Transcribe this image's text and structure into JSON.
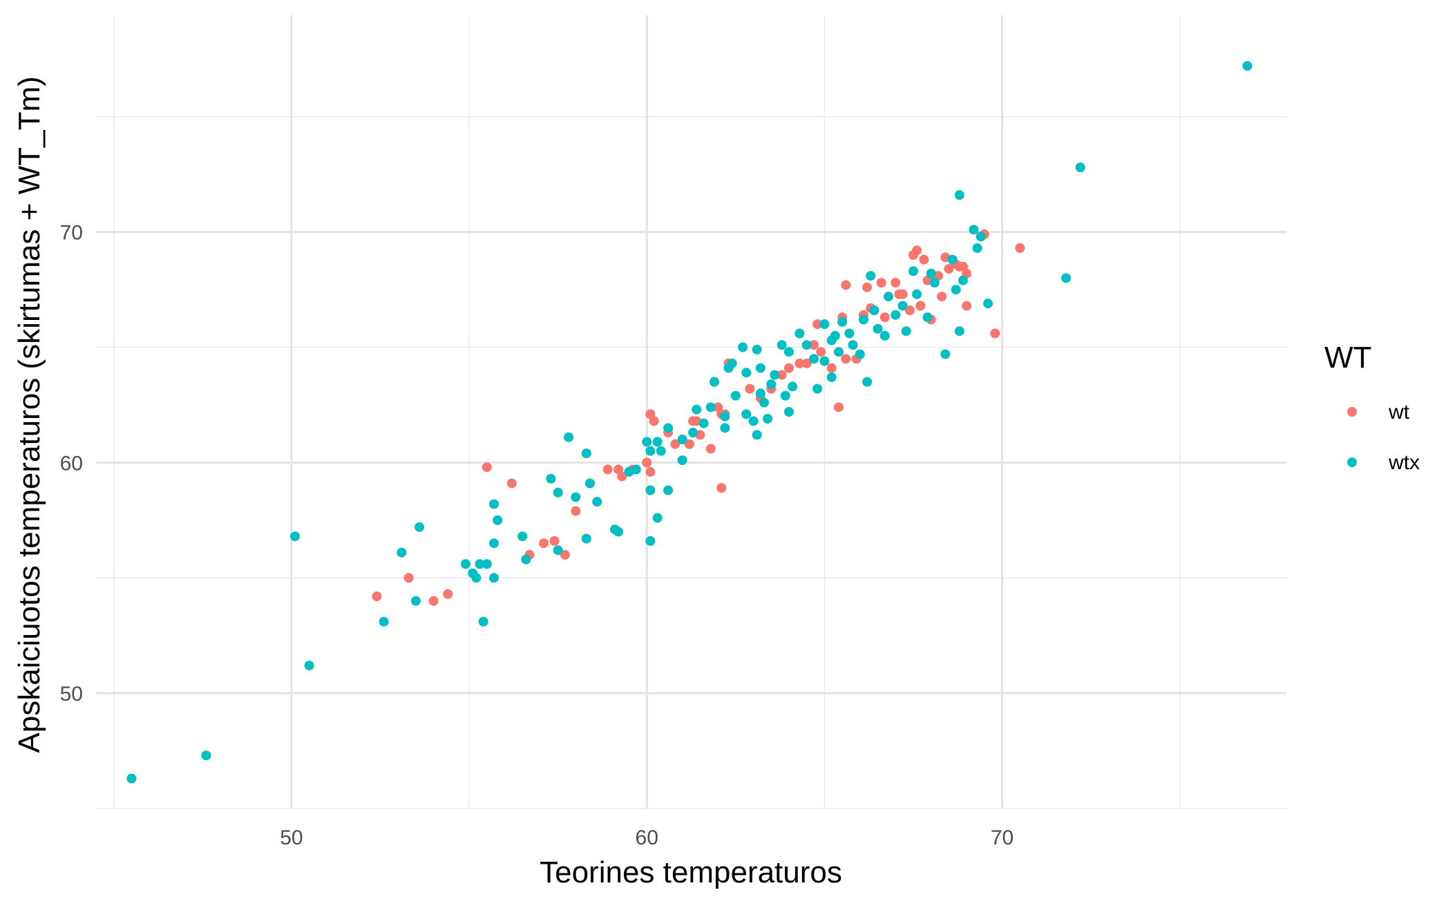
{
  "chart_data": {
    "type": "scatter",
    "xlabel": "Teorines temperaturos",
    "ylabel": "Apskaiciuotos temperaturos (skirtumas + WT_Tm)",
    "xlim": [
      44.5,
      78.0
    ],
    "ylim": [
      45.0,
      79.4
    ],
    "x_ticks": [
      50,
      60,
      70
    ],
    "y_ticks": [
      50,
      60,
      70
    ],
    "grid": true,
    "legend": {
      "title": "WT",
      "position": "right"
    },
    "colors": {
      "wt": "#F8766D",
      "wtx": "#00BFC4"
    },
    "series": [
      {
        "name": "wt",
        "points": [
          [
            52.4,
            54.2
          ],
          [
            53.3,
            55.0
          ],
          [
            54.0,
            54.0
          ],
          [
            54.4,
            54.3
          ],
          [
            55.5,
            59.8
          ],
          [
            56.2,
            59.1
          ],
          [
            56.7,
            56.0
          ],
          [
            57.1,
            56.5
          ],
          [
            57.4,
            56.6
          ],
          [
            57.7,
            56.0
          ],
          [
            58.0,
            57.9
          ],
          [
            58.4,
            59.1
          ],
          [
            58.9,
            59.7
          ],
          [
            59.2,
            59.7
          ],
          [
            59.3,
            59.4
          ],
          [
            59.6,
            59.7
          ],
          [
            60.0,
            60.0
          ],
          [
            60.1,
            59.6
          ],
          [
            60.1,
            62.1
          ],
          [
            60.2,
            61.8
          ],
          [
            60.6,
            61.3
          ],
          [
            60.8,
            60.8
          ],
          [
            61.2,
            60.8
          ],
          [
            61.3,
            61.8
          ],
          [
            61.4,
            61.8
          ],
          [
            61.5,
            61.2
          ],
          [
            61.8,
            60.6
          ],
          [
            62.0,
            62.4
          ],
          [
            62.1,
            58.9
          ],
          [
            62.1,
            62.1
          ],
          [
            62.2,
            62.1
          ],
          [
            62.3,
            64.3
          ],
          [
            62.9,
            63.2
          ],
          [
            63.2,
            62.8
          ],
          [
            63.5,
            63.2
          ],
          [
            63.8,
            63.8
          ],
          [
            64.0,
            64.1
          ],
          [
            64.3,
            64.3
          ],
          [
            64.5,
            64.3
          ],
          [
            64.7,
            65.1
          ],
          [
            64.8,
            66.0
          ],
          [
            64.9,
            64.8
          ],
          [
            65.2,
            64.1
          ],
          [
            65.4,
            62.4
          ],
          [
            65.5,
            66.3
          ],
          [
            65.6,
            67.7
          ],
          [
            65.6,
            64.5
          ],
          [
            65.9,
            64.5
          ],
          [
            66.1,
            66.4
          ],
          [
            66.2,
            67.6
          ],
          [
            66.3,
            66.7
          ],
          [
            66.4,
            66.6
          ],
          [
            66.6,
            67.8
          ],
          [
            66.7,
            66.3
          ],
          [
            67.0,
            67.8
          ],
          [
            67.1,
            67.3
          ],
          [
            67.2,
            67.3
          ],
          [
            67.4,
            66.6
          ],
          [
            67.5,
            69.0
          ],
          [
            67.6,
            69.2
          ],
          [
            67.7,
            66.8
          ],
          [
            67.8,
            68.8
          ],
          [
            67.9,
            67.9
          ],
          [
            68.0,
            66.2
          ],
          [
            68.1,
            68.0
          ],
          [
            68.2,
            68.1
          ],
          [
            68.3,
            67.2
          ],
          [
            68.4,
            68.9
          ],
          [
            68.5,
            68.4
          ],
          [
            68.7,
            68.6
          ],
          [
            68.8,
            68.5
          ],
          [
            68.9,
            68.5
          ],
          [
            69.0,
            68.2
          ],
          [
            69.0,
            66.8
          ],
          [
            69.5,
            69.9
          ],
          [
            69.8,
            65.6
          ],
          [
            70.5,
            69.3
          ]
        ]
      },
      {
        "name": "wtx",
        "points": [
          [
            45.5,
            46.3
          ],
          [
            47.6,
            47.3
          ],
          [
            50.1,
            56.8
          ],
          [
            50.5,
            51.2
          ],
          [
            52.6,
            53.1
          ],
          [
            53.1,
            56.1
          ],
          [
            53.5,
            54.0
          ],
          [
            53.6,
            57.2
          ],
          [
            54.9,
            55.6
          ],
          [
            55.1,
            55.2
          ],
          [
            55.2,
            55.0
          ],
          [
            55.3,
            55.6
          ],
          [
            55.4,
            53.1
          ],
          [
            55.5,
            55.6
          ],
          [
            55.7,
            55.0
          ],
          [
            55.7,
            56.5
          ],
          [
            55.7,
            58.2
          ],
          [
            55.8,
            57.5
          ],
          [
            56.5,
            56.8
          ],
          [
            56.6,
            55.8
          ],
          [
            57.3,
            59.3
          ],
          [
            57.5,
            58.7
          ],
          [
            57.5,
            56.2
          ],
          [
            57.8,
            61.1
          ],
          [
            58.0,
            58.5
          ],
          [
            58.3,
            60.4
          ],
          [
            58.3,
            56.7
          ],
          [
            58.4,
            59.1
          ],
          [
            58.6,
            58.3
          ],
          [
            59.1,
            57.1
          ],
          [
            59.2,
            57.0
          ],
          [
            59.5,
            59.6
          ],
          [
            59.7,
            59.7
          ],
          [
            60.0,
            60.9
          ],
          [
            60.1,
            60.5
          ],
          [
            60.1,
            58.8
          ],
          [
            60.1,
            56.6
          ],
          [
            60.3,
            60.9
          ],
          [
            60.3,
            57.6
          ],
          [
            60.4,
            60.5
          ],
          [
            60.6,
            61.5
          ],
          [
            60.6,
            58.8
          ],
          [
            61.0,
            61.0
          ],
          [
            61.0,
            60.1
          ],
          [
            61.3,
            61.3
          ],
          [
            61.4,
            62.3
          ],
          [
            61.6,
            61.7
          ],
          [
            61.8,
            62.4
          ],
          [
            61.9,
            63.5
          ],
          [
            62.2,
            62.0
          ],
          [
            62.2,
            61.5
          ],
          [
            62.3,
            64.1
          ],
          [
            62.4,
            64.3
          ],
          [
            62.5,
            62.9
          ],
          [
            62.7,
            65.0
          ],
          [
            62.8,
            63.9
          ],
          [
            62.8,
            62.1
          ],
          [
            63.0,
            61.8
          ],
          [
            63.1,
            64.9
          ],
          [
            63.1,
            61.2
          ],
          [
            63.2,
            64.1
          ],
          [
            63.2,
            63.0
          ],
          [
            63.3,
            62.6
          ],
          [
            63.4,
            61.9
          ],
          [
            63.5,
            63.4
          ],
          [
            63.6,
            63.8
          ],
          [
            63.8,
            65.1
          ],
          [
            63.9,
            62.9
          ],
          [
            64.0,
            62.2
          ],
          [
            64.0,
            64.8
          ],
          [
            64.1,
            63.3
          ],
          [
            64.3,
            65.6
          ],
          [
            64.5,
            65.1
          ],
          [
            64.7,
            64.5
          ],
          [
            64.8,
            63.2
          ],
          [
            65.0,
            64.4
          ],
          [
            65.0,
            66.0
          ],
          [
            65.2,
            65.3
          ],
          [
            65.2,
            63.7
          ],
          [
            65.3,
            65.5
          ],
          [
            65.4,
            64.8
          ],
          [
            65.5,
            66.1
          ],
          [
            65.7,
            65.6
          ],
          [
            65.8,
            65.1
          ],
          [
            66.0,
            64.7
          ],
          [
            66.1,
            66.2
          ],
          [
            66.2,
            63.5
          ],
          [
            66.3,
            68.1
          ],
          [
            66.4,
            66.6
          ],
          [
            66.5,
            65.8
          ],
          [
            66.7,
            65.5
          ],
          [
            66.8,
            67.2
          ],
          [
            67.0,
            66.4
          ],
          [
            67.2,
            66.8
          ],
          [
            67.3,
            65.7
          ],
          [
            67.5,
            68.3
          ],
          [
            67.6,
            67.3
          ],
          [
            67.9,
            66.3
          ],
          [
            68.0,
            68.2
          ],
          [
            68.1,
            67.8
          ],
          [
            68.4,
            64.7
          ],
          [
            68.6,
            68.8
          ],
          [
            68.7,
            67.5
          ],
          [
            68.8,
            71.6
          ],
          [
            68.8,
            65.7
          ],
          [
            68.9,
            67.9
          ],
          [
            69.2,
            70.1
          ],
          [
            69.3,
            69.3
          ],
          [
            69.4,
            69.8
          ],
          [
            69.6,
            66.9
          ],
          [
            71.8,
            68.0
          ],
          [
            72.2,
            72.8
          ],
          [
            76.9,
            77.2
          ]
        ]
      }
    ]
  }
}
